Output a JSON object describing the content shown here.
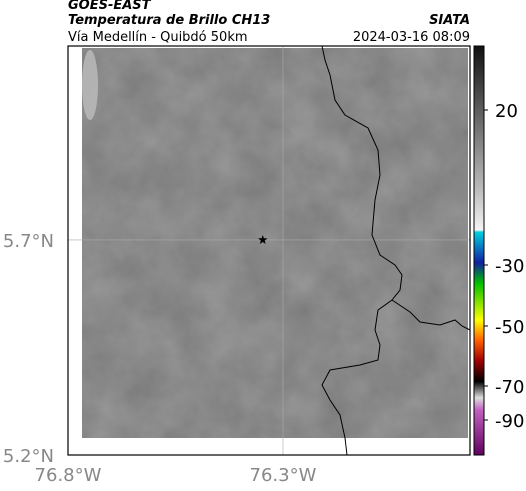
{
  "header": {
    "satellite": "GOES-EAST",
    "product": "Temperatura de Brillo CH13",
    "region": "Vía Medellín - Quibdó 50km",
    "agency": "SIATA",
    "timestamp": "2024-03-16 08:09"
  },
  "map": {
    "xlim": [
      -76.8,
      -75.865
    ],
    "ylim": [
      5.2,
      6.151
    ],
    "xticks": [
      {
        "value": -76.8,
        "label": "76.8°W"
      },
      {
        "value": -76.3,
        "label": "76.3°W"
      }
    ],
    "yticks": [
      {
        "value": 5.7,
        "label": "5.7°N"
      },
      {
        "value": 5.2,
        "label": "5.2°N"
      }
    ],
    "marker": {
      "lon": -76.347,
      "lat": 5.7
    }
  },
  "colorbar": {
    "ticks": [
      20,
      -30,
      -50,
      -70,
      -90
    ]
  }
}
